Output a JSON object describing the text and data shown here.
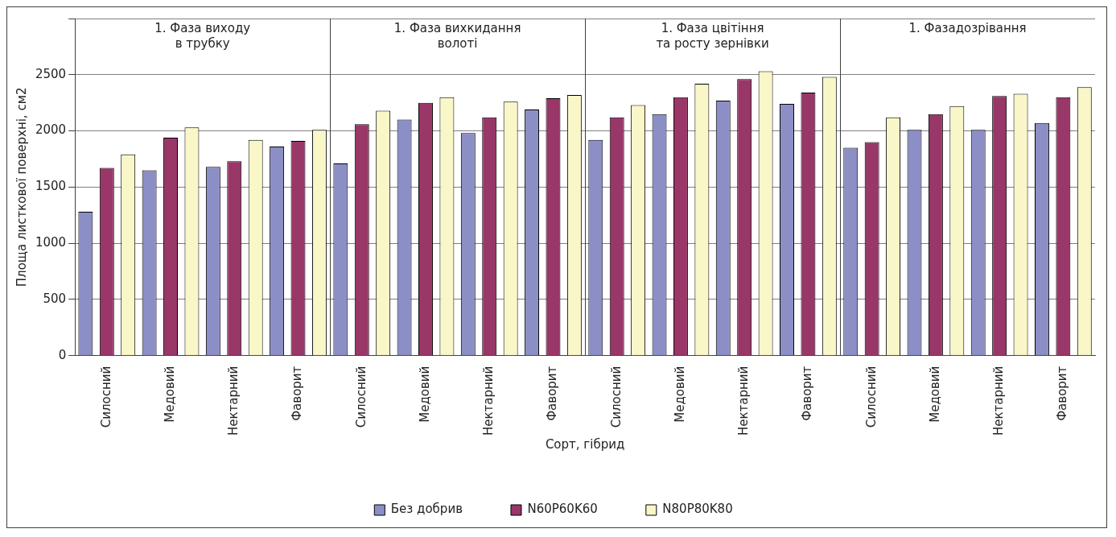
{
  "chart_data": {
    "type": "bar",
    "xlabel": "Сорт, гібрид",
    "ylabel": "Площа листкової поверхні, см2",
    "categories": [
      "Силосний",
      "Медовий",
      "Нектарний",
      "Фаворит",
      "Силосний",
      "Медовий",
      "Нектарний",
      "Фаворит",
      "Силосний",
      "Медовий",
      "Нектарний",
      "Фаворит",
      "Силосний",
      "Медовий",
      "Нектарний",
      "Фаворит"
    ],
    "series": [
      {
        "name": "Без добрив",
        "color": "#8c8fc6",
        "values": [
          1280,
          1650,
          1680,
          1860,
          1710,
          2100,
          1980,
          2190,
          1920,
          2150,
          2270,
          2240,
          1850,
          2010,
          2010,
          2070
        ]
      },
      {
        "name": "N60P60K60",
        "color": "#993769",
        "values": [
          1670,
          1940,
          1730,
          1910,
          2060,
          2250,
          2120,
          2290,
          2120,
          2300,
          2460,
          2340,
          1900,
          2150,
          2310,
          2300
        ]
      },
      {
        "name": "N80P80K80",
        "color": "#f9f6c8",
        "values": [
          1790,
          2030,
          1920,
          2010,
          2180,
          2300,
          2260,
          2320,
          2230,
          2420,
          2530,
          2480,
          2120,
          2220,
          2330,
          2390
        ]
      }
    ],
    "annotations": [
      "1. Фаза виходу\nв трубку",
      "1. Фаза вихкидання\nволоті",
      "1. Фаза цвітіння\nта росту зернівки",
      "1. Фазадозрівання"
    ],
    "ylim": [
      0,
      3000
    ],
    "yticks": [
      0,
      500,
      1000,
      1500,
      2000,
      2500,
      {
        "value": 3000,
        "label": null
      }
    ],
    "grid": "y",
    "legend": "bottom"
  }
}
